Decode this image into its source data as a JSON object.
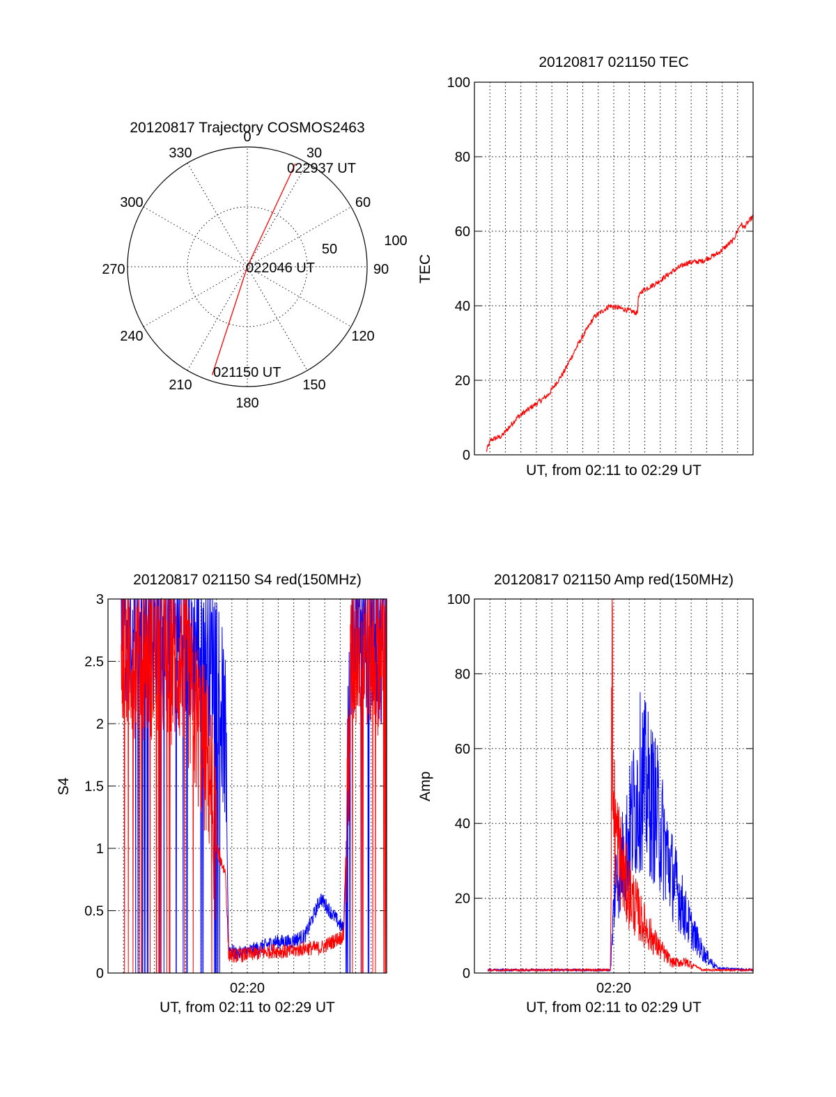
{
  "colors": {
    "red": "#ff0000",
    "blue": "#0000ff",
    "axis": "#000000"
  },
  "chart_data": [
    {
      "id": "trajectory",
      "type": "polar",
      "title": "20120817 Trajectory COSMOS2463",
      "angle_labels": [
        "0",
        "30",
        "60",
        "90",
        "120",
        "150",
        "180",
        "210",
        "240",
        "270",
        "300",
        "330"
      ],
      "radius_labels": [
        "50",
        "100"
      ],
      "rlim": [
        0,
        100
      ],
      "grid": true,
      "annotations": [
        "022937 UT",
        "022046 UT",
        "021150 UT"
      ],
      "series": [
        {
          "color": "red",
          "azimuth_deg": [
            198,
            198,
            25,
            25
          ],
          "radius": [
            95,
            0,
            0,
            95
          ]
        }
      ]
    },
    {
      "id": "tec",
      "type": "line",
      "title": "20120817 021150 TEC",
      "ylabel": "TEC",
      "xlabel": "UT, from 02:11 to 02:29 UT",
      "ylim": [
        0,
        100
      ],
      "yticks": [
        "0",
        "20",
        "40",
        "60",
        "80",
        "100"
      ],
      "xticks": [],
      "grid": true,
      "series": [
        {
          "color": "red",
          "x_minutes": [
            0,
            0.3,
            1.0,
            2.0,
            3.0,
            4.0,
            5.0,
            6.0,
            7.0,
            8.0,
            9.0,
            9.8,
            9.85,
            10.1,
            11.0,
            12.0,
            13.0,
            14.0,
            15.0,
            16.0,
            16.5,
            16.7,
            17.3
          ],
          "values": [
            1,
            4,
            5,
            10,
            13,
            16,
            22,
            30,
            37,
            40,
            39,
            38,
            42,
            44,
            46,
            49,
            51.5,
            52,
            54,
            57.5,
            62,
            61,
            64
          ]
        }
      ]
    },
    {
      "id": "s4",
      "type": "line",
      "title": "20120817 021150 S4 red(150MHz)",
      "ylabel": "S4",
      "xlabel": "UT, from 02:11 to 02:29 UT",
      "ylim": [
        0,
        3
      ],
      "yticks": [
        "0",
        "0.5",
        "1",
        "1.5",
        "2",
        "2.5",
        "3"
      ],
      "xticks": [
        "02:20"
      ],
      "grid": true,
      "series": [
        {
          "color": "red",
          "name": ""
        },
        {
          "color": "blue",
          "name": ""
        }
      ],
      "envelope": {
        "x_minutes": [
          0,
          4,
          5.8,
          6.2,
          6.8,
          7.0,
          7.5,
          9.0,
          10.0,
          11.0,
          12.0,
          13.0,
          14.5,
          15.0,
          15.5,
          16.5
        ],
        "red_values": [
          2.6,
          2.5,
          1.6,
          1.0,
          0.8,
          0.15,
          0.14,
          0.16,
          0.18,
          0.17,
          0.2,
          0.2,
          0.3,
          2.5,
          2.7,
          2.6
        ],
        "blue_values": [
          2.8,
          2.7,
          2.5,
          2.6,
          1.8,
          0.2,
          0.15,
          0.2,
          0.25,
          0.25,
          0.3,
          0.6,
          0.35,
          2.7,
          2.9,
          2.7
        ]
      }
    },
    {
      "id": "amp",
      "type": "line",
      "title": "20120817 021150 Amp red(150MHz)",
      "ylabel": "Amp",
      "xlabel": "UT, from 02:11 to 02:29 UT",
      "ylim": [
        0,
        100
      ],
      "yticks": [
        "0",
        "20",
        "40",
        "60",
        "80",
        "100"
      ],
      "xticks": [
        "02:20"
      ],
      "grid": true,
      "series": [
        {
          "color": "red",
          "x_minutes": [
            0,
            8.0,
            8.1,
            8.2,
            8.5,
            9.0,
            10.0,
            11.0,
            12.0,
            13.0,
            14.0,
            17.3
          ],
          "values": [
            0.5,
            0.5,
            85,
            45,
            35,
            25,
            15,
            8,
            3,
            3,
            0.5,
            0.5
          ]
        },
        {
          "color": "blue",
          "x_minutes": [
            0,
            8.0,
            8.3,
            9.0,
            10.0,
            11.0,
            12.0,
            13.0,
            14.0,
            15.0,
            17.3
          ],
          "values": [
            0.5,
            0.5,
            25,
            35,
            55,
            45,
            28,
            15,
            6,
            1,
            0.5
          ]
        }
      ]
    }
  ]
}
